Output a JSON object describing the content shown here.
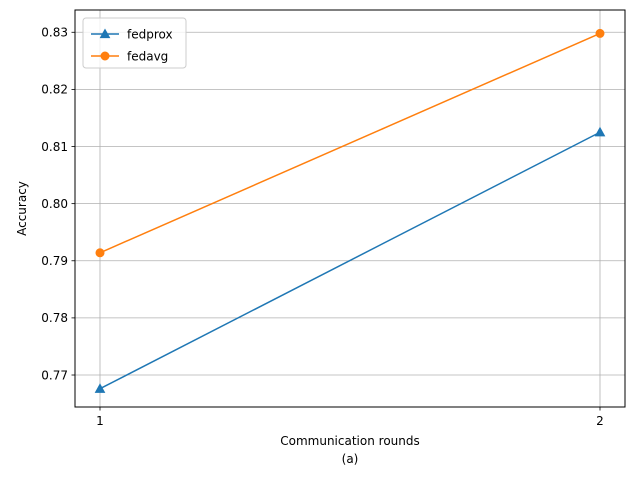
{
  "chart_data": {
    "type": "line",
    "title": "",
    "xlabel": "Communication rounds",
    "subcaption": "(a)",
    "ylabel": "Accuracy",
    "x": [
      1,
      2
    ],
    "x_ticks": [
      "1",
      "2"
    ],
    "y_ticks": [
      "0.77",
      "0.78",
      "0.79",
      "0.80",
      "0.81",
      "0.82",
      "0.83"
    ],
    "xlim": [
      0.95,
      2.05
    ],
    "ylim": [
      0.7644,
      0.8339
    ],
    "grid": true,
    "legend_position": "top-left",
    "series": [
      {
        "name": "fedprox",
        "values": [
          0.7676,
          0.8125
        ],
        "color": "#1f77b4",
        "marker": "triangle"
      },
      {
        "name": "fedavg",
        "values": [
          0.7914,
          0.8298
        ],
        "color": "#ff7f0e",
        "marker": "circle"
      }
    ]
  }
}
